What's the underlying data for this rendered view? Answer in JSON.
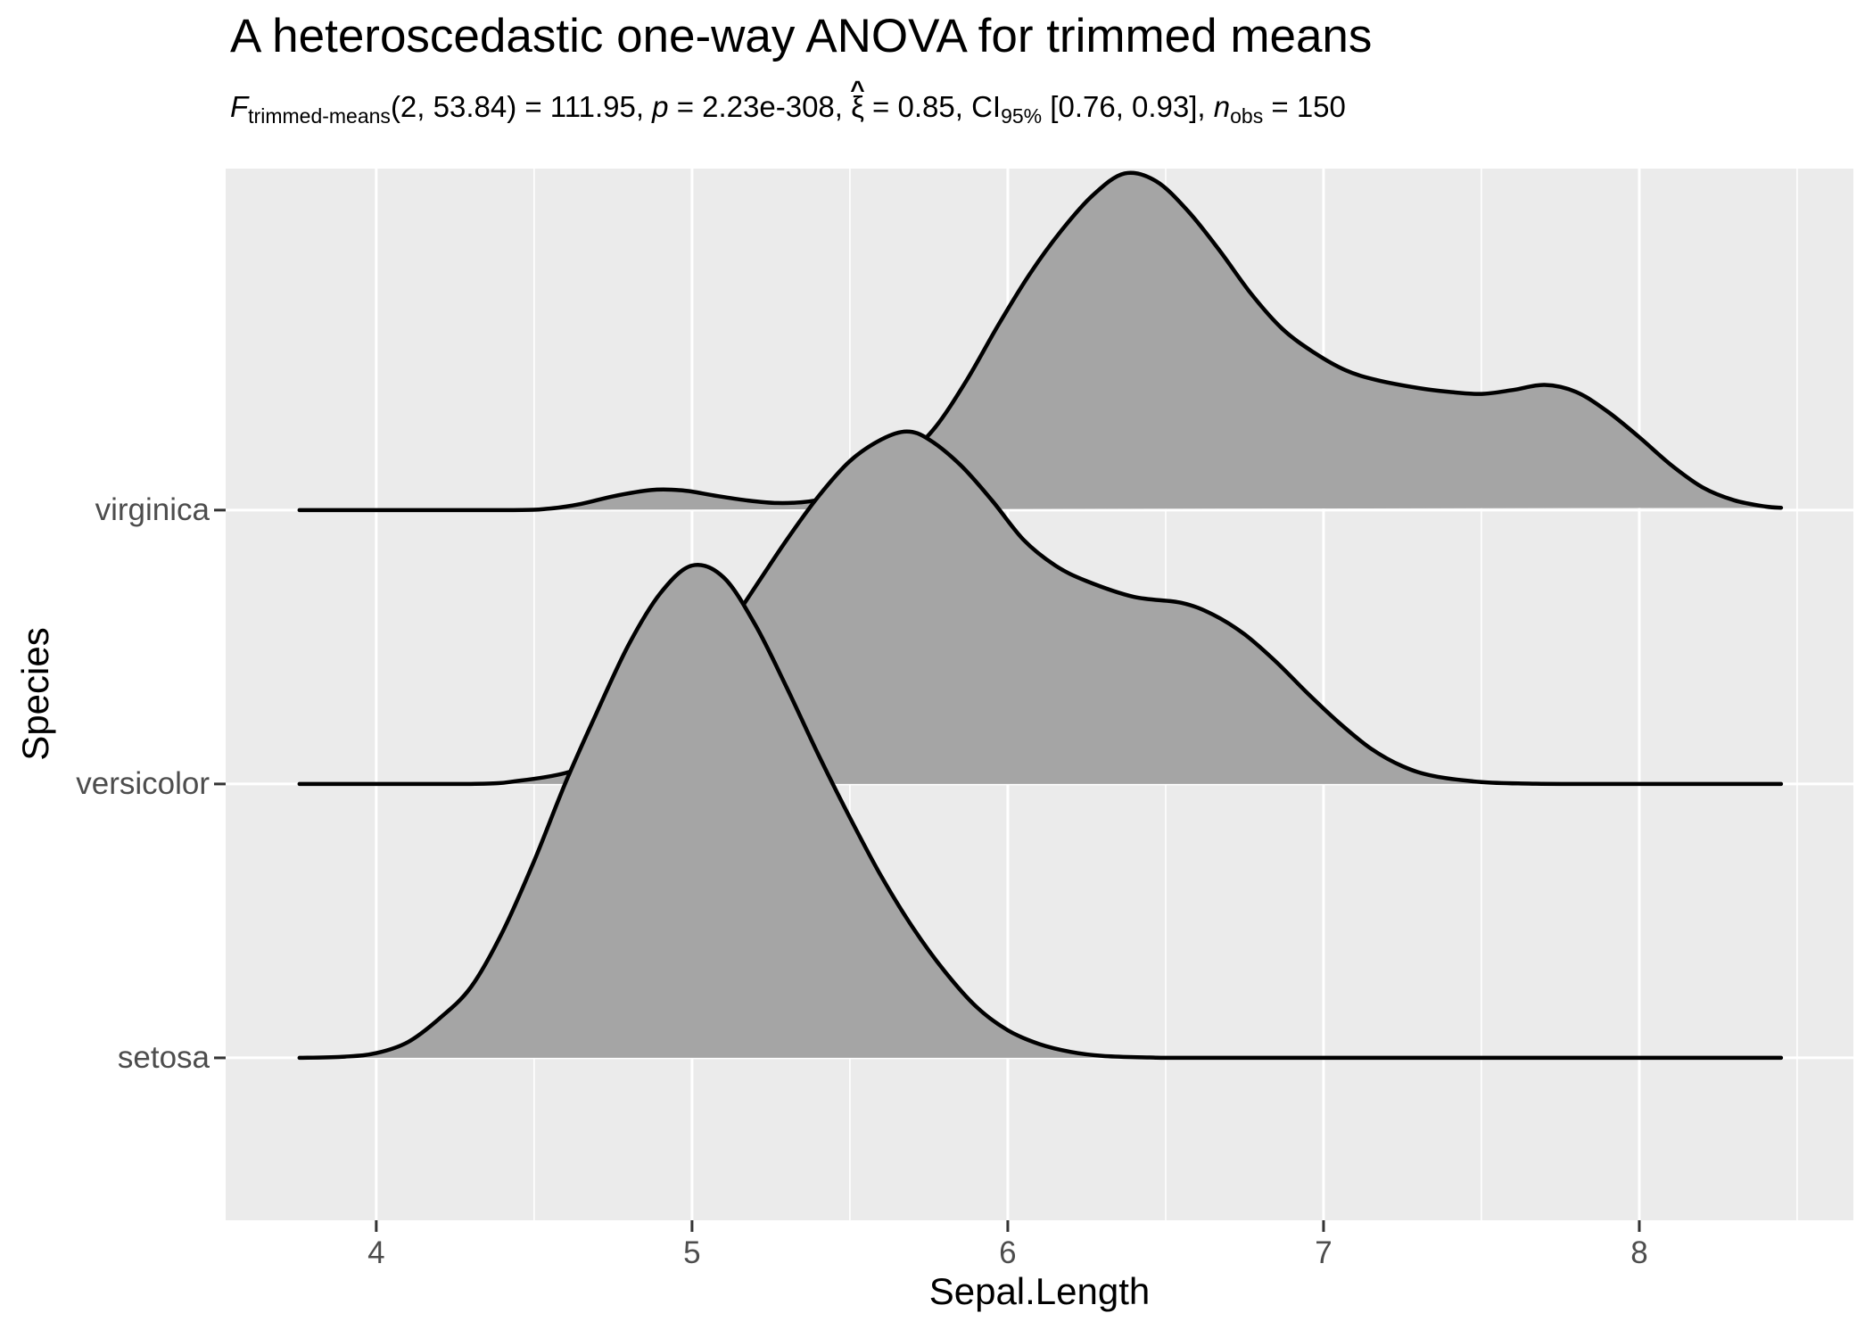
{
  "header": {
    "title": "A heteroscedastic one-way ANOVA for trimmed means"
  },
  "chart_data": {
    "type": "area",
    "variant": "ridgeline-density",
    "title": "A heteroscedastic one-way ANOVA for trimmed means",
    "subtitle_plain": "F trimmed-means (2, 53.84) = 111.95, p = 2.23e-308, xi-hat = 0.85, CI 95% [0.76, 0.93], n obs = 150",
    "subtitle_segments": [
      {
        "t": "F",
        "s": "i"
      },
      {
        "t": "trimmed-means",
        "s": "sub"
      },
      {
        "t": "(2, 53.84) = 111.95, ",
        "s": "n"
      },
      {
        "t": "p",
        "s": "i"
      },
      {
        "t": " = 2.23e-308, ",
        "s": "n"
      },
      {
        "t": "ξ",
        "s": "hat",
        "hat": "^"
      },
      {
        "t": " = 0.85, CI",
        "s": "n"
      },
      {
        "t": "95%",
        "s": "sub"
      },
      {
        "t": " [0.76, 0.93], ",
        "s": "n"
      },
      {
        "t": "n",
        "s": "i"
      },
      {
        "t": "obs",
        "s": "sub"
      },
      {
        "t": " = 150",
        "s": "n"
      }
    ],
    "xlabel": "Sepal.Length",
    "ylabel": "Species",
    "x_axis": {
      "major_ticks": [
        4,
        5,
        6,
        7,
        8
      ],
      "minor_ticks": [
        4.5,
        5.5,
        6.5,
        7.5,
        8.5
      ],
      "xlim": [
        3.523,
        8.678
      ]
    },
    "y_axis": {
      "categories": [
        "setosa",
        "versicolor",
        "virginica"
      ],
      "rows": [
        1,
        2,
        3
      ],
      "ylim": [
        0.407,
        4.247
      ]
    },
    "density_row_scale": 1.438,
    "grid": true,
    "legend": "none",
    "series": [
      {
        "name": "virginica",
        "row": 3,
        "points": [
          [
            3.757,
            0
          ],
          [
            4.4,
            0
          ],
          [
            4.55,
            0.004
          ],
          [
            4.65,
            0.016
          ],
          [
            4.75,
            0.035
          ],
          [
            4.87,
            0.051
          ],
          [
            4.97,
            0.05
          ],
          [
            5.07,
            0.037
          ],
          [
            5.17,
            0.025
          ],
          [
            5.27,
            0.018
          ],
          [
            5.37,
            0.022
          ],
          [
            5.47,
            0.04
          ],
          [
            5.57,
            0.075
          ],
          [
            5.67,
            0.13
          ],
          [
            5.77,
            0.21
          ],
          [
            5.87,
            0.33
          ],
          [
            5.97,
            0.47
          ],
          [
            6.07,
            0.6
          ],
          [
            6.17,
            0.71
          ],
          [
            6.27,
            0.8
          ],
          [
            6.37,
            0.855
          ],
          [
            6.47,
            0.835
          ],
          [
            6.57,
            0.76
          ],
          [
            6.67,
            0.66
          ],
          [
            6.77,
            0.55
          ],
          [
            6.87,
            0.46
          ],
          [
            6.97,
            0.4
          ],
          [
            7.07,
            0.355
          ],
          [
            7.17,
            0.33
          ],
          [
            7.3,
            0.31
          ],
          [
            7.4,
            0.3
          ],
          [
            7.5,
            0.295
          ],
          [
            7.6,
            0.305
          ],
          [
            7.7,
            0.318
          ],
          [
            7.8,
            0.3
          ],
          [
            7.9,
            0.25
          ],
          [
            8.0,
            0.185
          ],
          [
            8.1,
            0.115
          ],
          [
            8.2,
            0.058
          ],
          [
            8.3,
            0.025
          ],
          [
            8.4,
            0.009
          ],
          [
            8.449,
            0.006
          ]
        ]
      },
      {
        "name": "versicolor",
        "row": 2,
        "points": [
          [
            3.757,
            0
          ],
          [
            4.3,
            0
          ],
          [
            4.45,
            0.008
          ],
          [
            4.6,
            0.028
          ],
          [
            4.7,
            0.06
          ],
          [
            4.8,
            0.11
          ],
          [
            4.9,
            0.18
          ],
          [
            5.0,
            0.27
          ],
          [
            5.1,
            0.38
          ],
          [
            5.2,
            0.5
          ],
          [
            5.3,
            0.62
          ],
          [
            5.4,
            0.73
          ],
          [
            5.5,
            0.82
          ],
          [
            5.6,
            0.875
          ],
          [
            5.68,
            0.895
          ],
          [
            5.75,
            0.875
          ],
          [
            5.85,
            0.81
          ],
          [
            5.95,
            0.72
          ],
          [
            6.05,
            0.62
          ],
          [
            6.15,
            0.555
          ],
          [
            6.25,
            0.515
          ],
          [
            6.4,
            0.475
          ],
          [
            6.55,
            0.46
          ],
          [
            6.65,
            0.43
          ],
          [
            6.75,
            0.38
          ],
          [
            6.85,
            0.31
          ],
          [
            6.95,
            0.23
          ],
          [
            7.05,
            0.155
          ],
          [
            7.15,
            0.09
          ],
          [
            7.25,
            0.045
          ],
          [
            7.35,
            0.02
          ],
          [
            7.5,
            0.005
          ],
          [
            7.65,
            0.001
          ],
          [
            7.8,
            0
          ],
          [
            8.449,
            0
          ]
        ]
      },
      {
        "name": "setosa",
        "row": 1,
        "points": [
          [
            3.757,
            0
          ],
          [
            3.9,
            0.003
          ],
          [
            4.0,
            0.012
          ],
          [
            4.1,
            0.04
          ],
          [
            4.2,
            0.1
          ],
          [
            4.3,
            0.18
          ],
          [
            4.4,
            0.32
          ],
          [
            4.5,
            0.5
          ],
          [
            4.6,
            0.7
          ],
          [
            4.7,
            0.88
          ],
          [
            4.8,
            1.05
          ],
          [
            4.9,
            1.18
          ],
          [
            5.0,
            1.25
          ],
          [
            5.1,
            1.22
          ],
          [
            5.2,
            1.1
          ],
          [
            5.3,
            0.94
          ],
          [
            5.4,
            0.77
          ],
          [
            5.5,
            0.61
          ],
          [
            5.6,
            0.46
          ],
          [
            5.7,
            0.33
          ],
          [
            5.8,
            0.22
          ],
          [
            5.9,
            0.13
          ],
          [
            6.0,
            0.07
          ],
          [
            6.1,
            0.035
          ],
          [
            6.2,
            0.015
          ],
          [
            6.3,
            0.005
          ],
          [
            6.45,
            0.001
          ],
          [
            6.6,
            0
          ],
          [
            7.5,
            0
          ],
          [
            8.449,
            0
          ]
        ]
      }
    ],
    "colors": {
      "panel_bg": "#EBEBEB",
      "grid": "#FFFFFF",
      "area_fill": "#A5A5A5",
      "line": "#000000",
      "tick_text": "#4D4D4D",
      "axis_title": "#000000",
      "tick_mark": "#333333"
    }
  }
}
